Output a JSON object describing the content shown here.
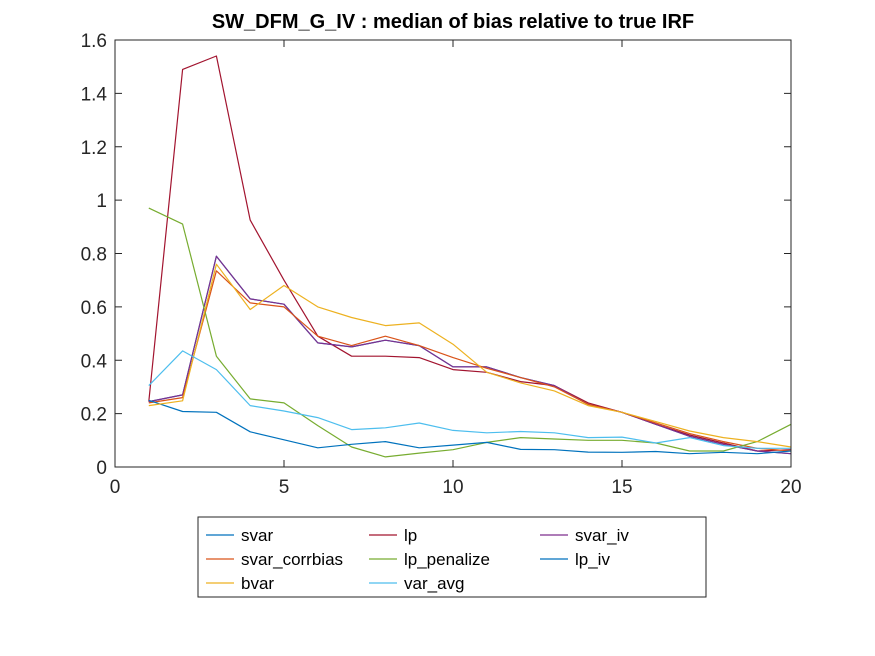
{
  "chart_data": {
    "type": "line",
    "title": "SW_DFM_G_IV : median of bias relative to true IRF",
    "xlabel": "",
    "ylabel": "",
    "xlim": [
      0,
      20
    ],
    "ylim": [
      0,
      1.6
    ],
    "xticks": [
      0,
      5,
      10,
      15,
      20
    ],
    "yticks": [
      0,
      0.2,
      0.4,
      0.6,
      0.8,
      1,
      1.2,
      1.4,
      1.6
    ],
    "grid": false,
    "legend_position": "bottom-outside",
    "x": [
      1,
      2,
      3,
      4,
      5,
      6,
      7,
      8,
      9,
      10,
      11,
      12,
      13,
      14,
      15,
      16,
      17,
      18,
      19,
      20
    ],
    "series": [
      {
        "name": "svar",
        "color": "#0072BD",
        "values": [
          0.245,
          0.27,
          0.79,
          0.63,
          0.61,
          0.465,
          0.45,
          0.475,
          0.455,
          0.375,
          0.375,
          0.335,
          0.305,
          0.235,
          0.205,
          0.16,
          0.115,
          0.085,
          0.06,
          0.05
        ]
      },
      {
        "name": "lp",
        "color": "#A2142F",
        "values": [
          0.245,
          1.49,
          1.54,
          0.925,
          0.7,
          0.49,
          0.415,
          0.415,
          0.41,
          0.365,
          0.355,
          0.32,
          0.305,
          0.24,
          0.205,
          0.16,
          0.12,
          0.09,
          0.06,
          0.065
        ]
      },
      {
        "name": "svar_iv",
        "color": "#7E2F8E",
        "values": [
          0.245,
          0.27,
          0.79,
          0.63,
          0.61,
          0.465,
          0.45,
          0.475,
          0.455,
          0.375,
          0.375,
          0.335,
          0.305,
          0.235,
          0.205,
          0.16,
          0.115,
          0.085,
          0.06,
          0.05
        ]
      },
      {
        "name": "svar_corrbias",
        "color": "#D95319",
        "values": [
          0.24,
          0.26,
          0.735,
          0.615,
          0.6,
          0.49,
          0.455,
          0.49,
          0.455,
          0.41,
          0.37,
          0.335,
          0.3,
          0.235,
          0.205,
          0.165,
          0.125,
          0.095,
          0.07,
          0.06
        ]
      },
      {
        "name": "lp_penalize",
        "color": "#77AC30",
        "values": [
          0.97,
          0.91,
          0.415,
          0.255,
          0.24,
          0.155,
          0.075,
          0.038,
          0.052,
          0.065,
          0.092,
          0.11,
          0.105,
          0.1,
          0.1,
          0.09,
          0.06,
          0.06,
          0.095,
          0.16
        ]
      },
      {
        "name": "lp_iv",
        "color": "#0072BD",
        "values": [
          0.25,
          0.208,
          0.205,
          0.132,
          0.102,
          0.072,
          0.085,
          0.095,
          0.072,
          0.082,
          0.092,
          0.066,
          0.065,
          0.056,
          0.055,
          0.058,
          0.05,
          0.055,
          0.05,
          0.06
        ]
      },
      {
        "name": "bvar",
        "color": "#EDB120",
        "values": [
          0.23,
          0.248,
          0.76,
          0.59,
          0.68,
          0.6,
          0.56,
          0.53,
          0.54,
          0.46,
          0.355,
          0.315,
          0.285,
          0.23,
          0.205,
          0.17,
          0.135,
          0.11,
          0.095,
          0.075
        ]
      },
      {
        "name": "var_avg",
        "color": "#4DBEEE",
        "values": [
          0.305,
          0.435,
          0.365,
          0.23,
          0.21,
          0.185,
          0.14,
          0.147,
          0.165,
          0.137,
          0.128,
          0.133,
          0.128,
          0.11,
          0.112,
          0.09,
          0.11,
          0.08,
          0.07,
          0.07
        ]
      }
    ]
  }
}
